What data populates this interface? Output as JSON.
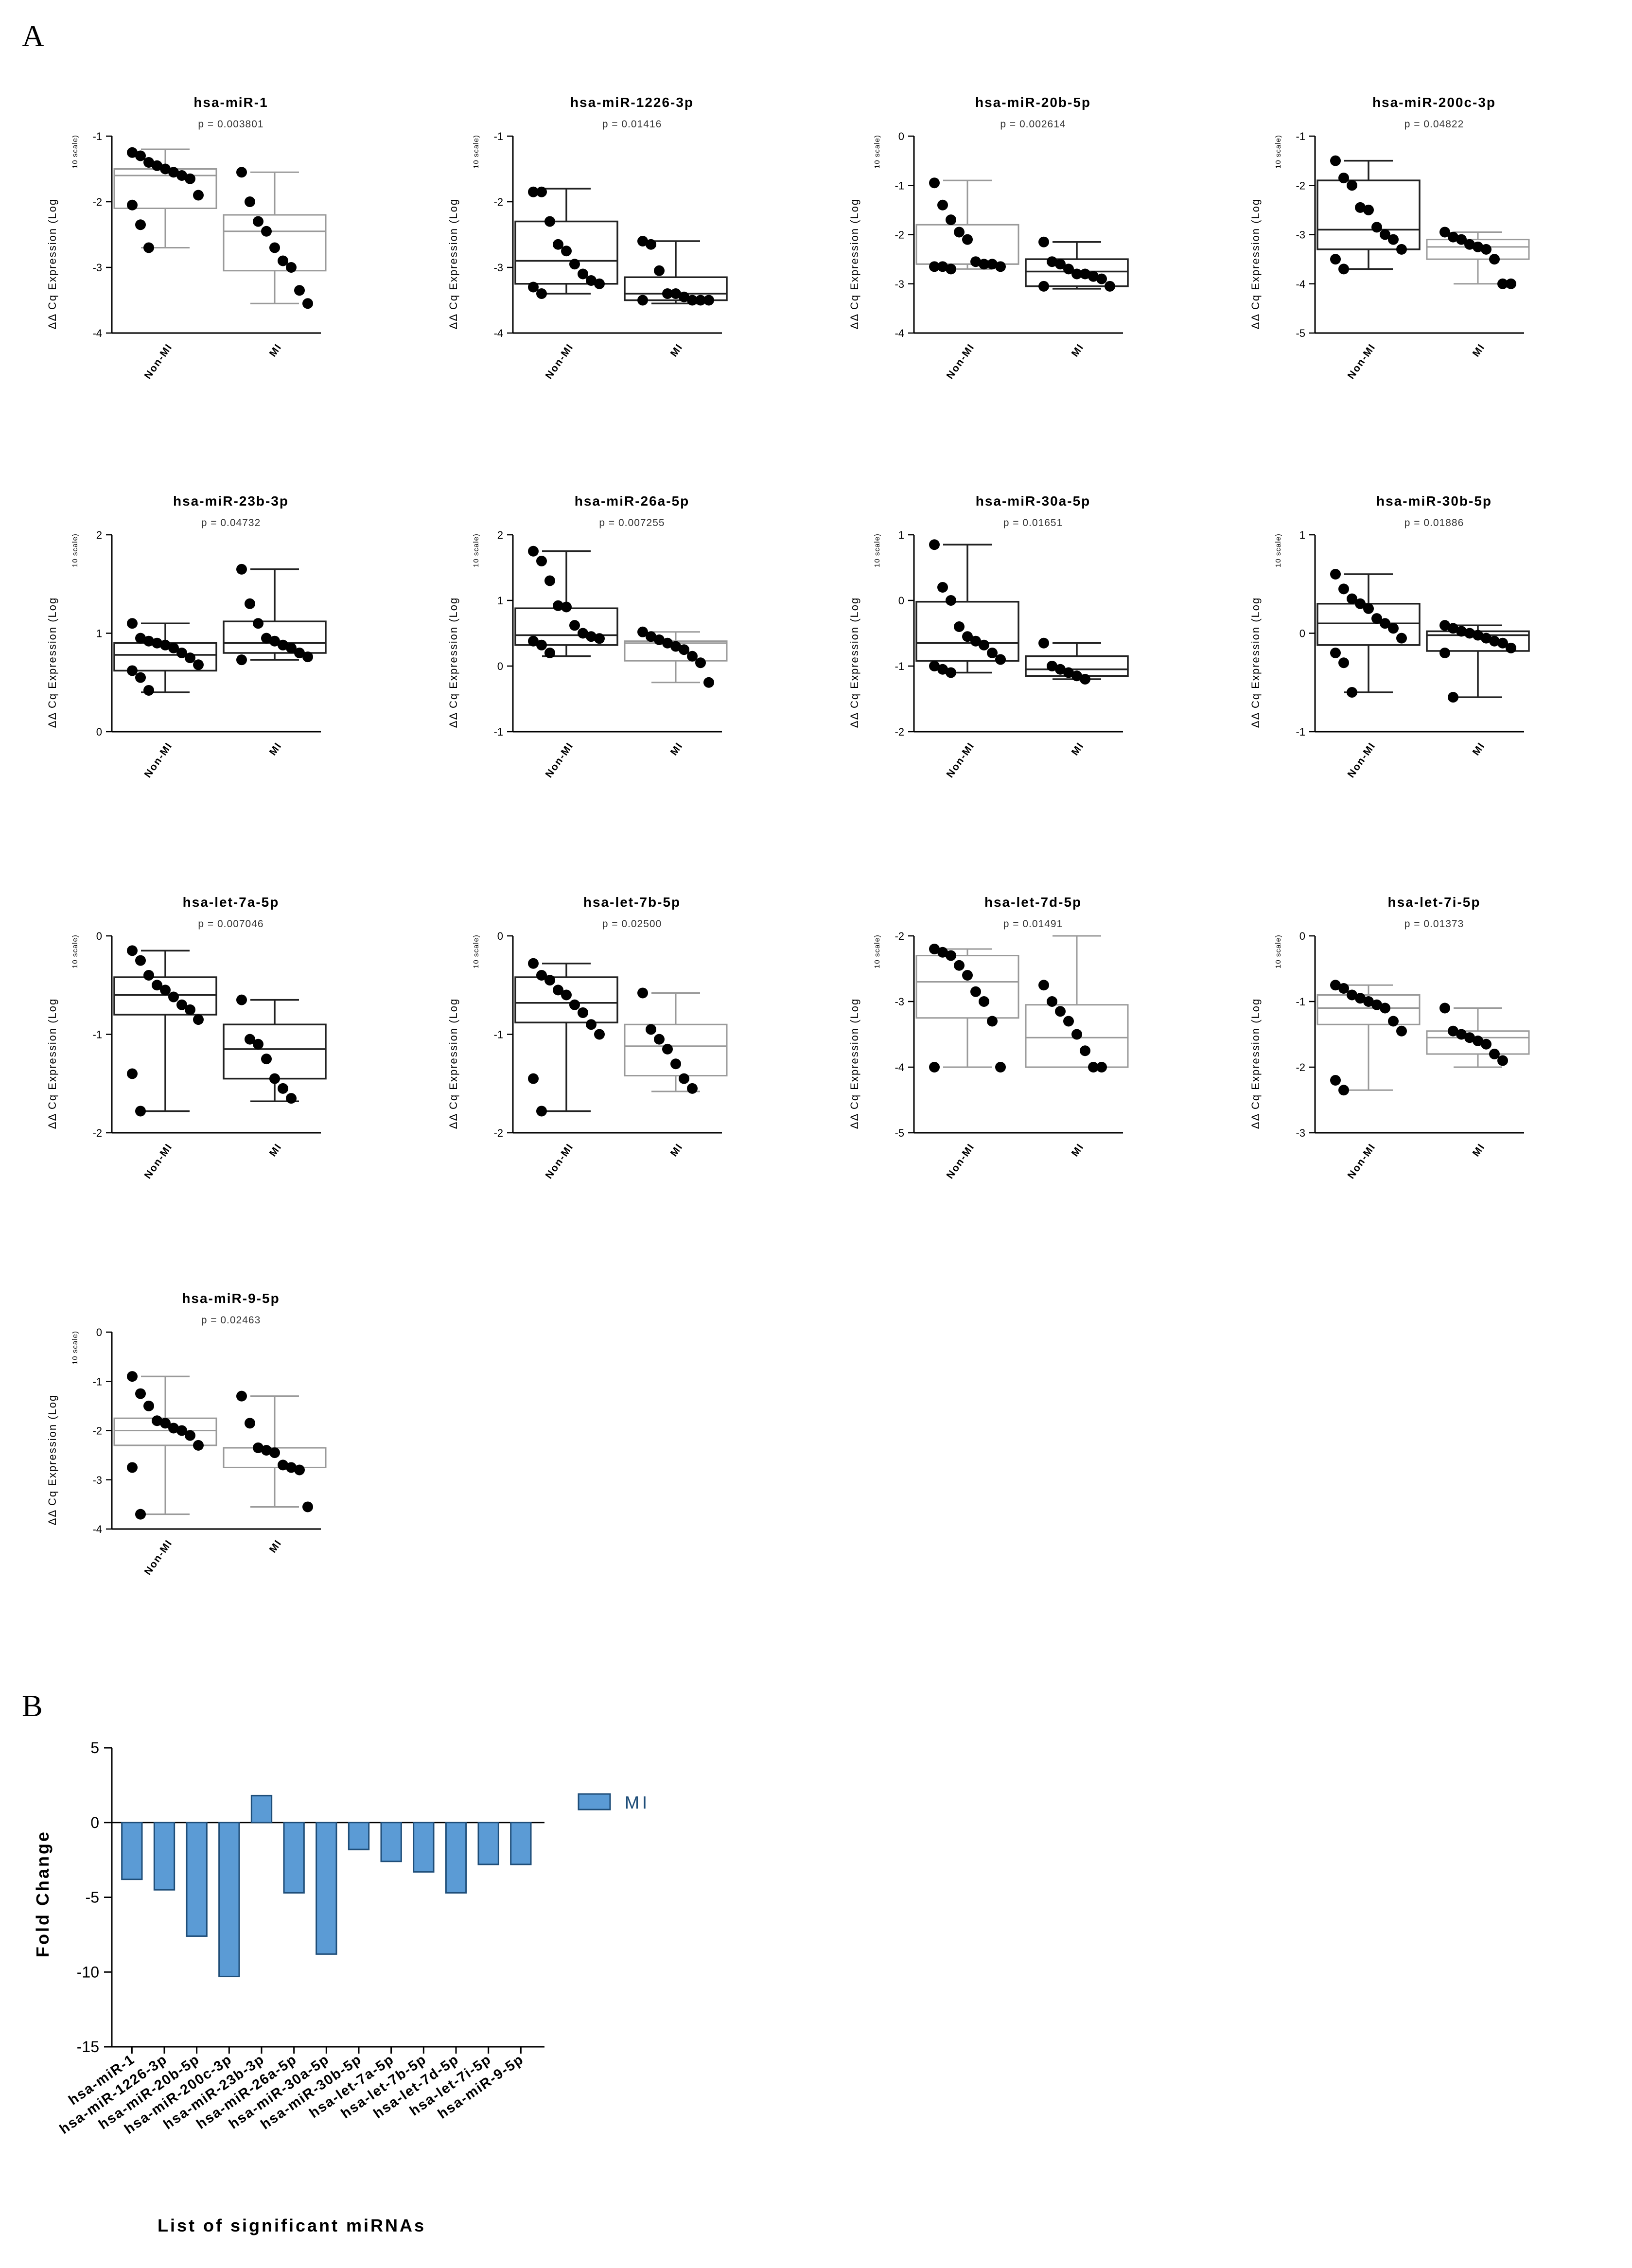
{
  "panel_a": {
    "label": "A"
  },
  "panel_b": {
    "label": "B"
  },
  "colors": {
    "bar_fill": "#5b9bd5",
    "bar_stroke": "#1f4e79",
    "legend_text": "#1f4e79"
  },
  "chart_data": [
    {
      "type": "box",
      "title": "hsa-miR-1",
      "pvalue": "p = 0.003801",
      "ylabel": "ΔΔ Cq Expression (Log",
      "ylabel_sub": "10 scale)",
      "ylim": [
        -4,
        -1
      ],
      "yticks": [
        -1,
        -2,
        -3,
        -4
      ],
      "categories": [
        "Non-MI",
        "MI"
      ],
      "groups": [
        {
          "name": "Non-MI",
          "style": "light",
          "whisker_low": -2.7,
          "q1": -2.1,
          "median": -1.6,
          "q3": -1.5,
          "whisker_high": -1.2,
          "points": [
            -1.25,
            -1.3,
            -1.4,
            -1.45,
            -1.5,
            -1.55,
            -1.6,
            -1.65,
            -1.9,
            -2.05,
            -2.35,
            -2.7
          ]
        },
        {
          "name": "MI",
          "style": "light",
          "whisker_low": -3.55,
          "q1": -3.05,
          "median": -2.45,
          "q3": -2.2,
          "whisker_high": -1.55,
          "points": [
            -1.55,
            -2.0,
            -2.3,
            -2.45,
            -2.7,
            -2.9,
            -3.0,
            -3.35,
            -3.55
          ]
        }
      ]
    },
    {
      "type": "box",
      "title": "hsa-miR-1226-3p",
      "pvalue": "p = 0.01416",
      "ylabel": "ΔΔ Cq Expression (Log",
      "ylabel_sub": "10 scale)",
      "ylim": [
        -4,
        -1
      ],
      "yticks": [
        -1,
        -2,
        -3,
        -4
      ],
      "categories": [
        "Non-MI",
        "MI"
      ],
      "groups": [
        {
          "name": "Non-MI",
          "style": "dark",
          "whisker_low": -3.4,
          "q1": -3.25,
          "median": -2.9,
          "q3": -2.3,
          "whisker_high": -1.8,
          "points": [
            -1.85,
            -1.85,
            -2.3,
            -2.65,
            -2.75,
            -2.95,
            -3.1,
            -3.2,
            -3.25,
            -3.3,
            -3.4
          ]
        },
        {
          "name": "MI",
          "style": "dark",
          "whisker_low": -3.55,
          "q1": -3.5,
          "median": -3.4,
          "q3": -3.15,
          "whisker_high": -2.6,
          "points": [
            -2.6,
            -2.65,
            -3.05,
            -3.4,
            -3.4,
            -3.45,
            -3.5,
            -3.5,
            -3.5,
            -3.5
          ]
        }
      ]
    },
    {
      "type": "box",
      "title": "hsa-miR-20b-5p",
      "pvalue": "p = 0.002614",
      "ylabel": "ΔΔ Cq Expression (Log",
      "ylabel_sub": "10 scale)",
      "ylim": [
        -4,
        0
      ],
      "yticks": [
        0,
        -1,
        -2,
        -3,
        -4
      ],
      "categories": [
        "Non-MI",
        "MI"
      ],
      "groups": [
        {
          "name": "Non-MI",
          "style": "light",
          "whisker_low": -2.7,
          "q1": -2.6,
          "median": -2.6,
          "q3": -1.8,
          "whisker_high": -0.9,
          "points": [
            -0.95,
            -1.4,
            -1.7,
            -1.95,
            -2.1,
            -2.55,
            -2.6,
            -2.6,
            -2.65,
            -2.65,
            -2.65,
            -2.7
          ]
        },
        {
          "name": "MI",
          "style": "dark",
          "whisker_low": -3.1,
          "q1": -3.05,
          "median": -2.75,
          "q3": -2.5,
          "whisker_high": -2.15,
          "points": [
            -2.15,
            -2.55,
            -2.6,
            -2.7,
            -2.8,
            -2.8,
            -2.85,
            -2.9,
            -3.05,
            -3.05
          ]
        }
      ]
    },
    {
      "type": "box",
      "title": "hsa-miR-200c-3p",
      "pvalue": "p = 0.04822",
      "ylabel": "ΔΔ Cq Expression (Log",
      "ylabel_sub": "10 scale)",
      "ylim": [
        -5,
        -1
      ],
      "yticks": [
        -1,
        -2,
        -3,
        -4,
        -5
      ],
      "categories": [
        "Non-MI",
        "MI"
      ],
      "groups": [
        {
          "name": "Non-MI",
          "style": "dark",
          "whisker_low": -3.7,
          "q1": -3.3,
          "median": -2.9,
          "q3": -1.9,
          "whisker_high": -1.5,
          "points": [
            -1.5,
            -1.85,
            -2.0,
            -2.45,
            -2.5,
            -2.85,
            -3.0,
            -3.1,
            -3.3,
            -3.5,
            -3.7
          ]
        },
        {
          "name": "MI",
          "style": "light",
          "whisker_low": -4.0,
          "q1": -3.5,
          "median": -3.25,
          "q3": -3.1,
          "whisker_high": -2.95,
          "points": [
            -2.95,
            -3.05,
            -3.1,
            -3.2,
            -3.25,
            -3.3,
            -3.5,
            -4.0,
            -4.0
          ]
        }
      ]
    },
    {
      "type": "box",
      "title": "hsa-miR-23b-3p",
      "pvalue": "p = 0.04732",
      "ylabel": "ΔΔ Cq Expression (Log",
      "ylabel_sub": "10 scale)",
      "ylim": [
        0,
        2
      ],
      "yticks": [
        2,
        1,
        0
      ],
      "categories": [
        "Non-MI",
        "MI"
      ],
      "groups": [
        {
          "name": "Non-MI",
          "style": "dark",
          "whisker_low": 0.4,
          "q1": 0.62,
          "median": 0.78,
          "q3": 0.9,
          "whisker_high": 1.1,
          "points": [
            1.1,
            0.95,
            0.92,
            0.9,
            0.88,
            0.85,
            0.8,
            0.75,
            0.68,
            0.62,
            0.55,
            0.42
          ]
        },
        {
          "name": "MI",
          "style": "dark",
          "whisker_low": 0.73,
          "q1": 0.8,
          "median": 0.9,
          "q3": 1.12,
          "whisker_high": 1.65,
          "points": [
            1.65,
            1.3,
            1.1,
            0.95,
            0.92,
            0.88,
            0.85,
            0.8,
            0.76,
            0.73
          ]
        }
      ]
    },
    {
      "type": "box",
      "title": "hsa-miR-26a-5p",
      "pvalue": "p = 0.007255",
      "ylabel": "ΔΔ Cq Expression (Log",
      "ylabel_sub": "10 scale)",
      "ylim": [
        -1,
        2
      ],
      "yticks": [
        2,
        1,
        0,
        -1
      ],
      "categories": [
        "Non-MI",
        "MI"
      ],
      "groups": [
        {
          "name": "Non-MI",
          "style": "dark",
          "whisker_low": 0.15,
          "q1": 0.32,
          "median": 0.47,
          "q3": 0.88,
          "whisker_high": 1.75,
          "points": [
            1.75,
            1.6,
            1.3,
            0.92,
            0.9,
            0.62,
            0.5,
            0.45,
            0.42,
            0.38,
            0.32,
            0.2
          ]
        },
        {
          "name": "MI",
          "style": "light",
          "whisker_low": -0.25,
          "q1": 0.08,
          "median": 0.35,
          "q3": 0.38,
          "whisker_high": 0.52,
          "points": [
            0.52,
            0.45,
            0.4,
            0.35,
            0.3,
            0.25,
            0.15,
            0.05,
            -0.25
          ]
        }
      ]
    },
    {
      "type": "box",
      "title": "hsa-miR-30a-5p",
      "pvalue": "p = 0.01651",
      "ylabel": "ΔΔ Cq Expression (Log",
      "ylabel_sub": "10 scale)",
      "ylim": [
        -2,
        1
      ],
      "yticks": [
        1,
        0,
        -1,
        -2
      ],
      "categories": [
        "Non-MI",
        "MI"
      ],
      "groups": [
        {
          "name": "Non-MI",
          "style": "dark",
          "whisker_low": -1.1,
          "q1": -0.92,
          "median": -0.65,
          "q3": -0.02,
          "whisker_high": 0.85,
          "points": [
            0.85,
            0.2,
            0.0,
            -0.4,
            -0.55,
            -0.62,
            -0.68,
            -0.8,
            -0.9,
            -1.0,
            -1.05,
            -1.1
          ]
        },
        {
          "name": "MI",
          "style": "dark",
          "whisker_low": -1.2,
          "q1": -1.15,
          "median": -1.05,
          "q3": -0.85,
          "whisker_high": -0.65,
          "points": [
            -0.65,
            -1.0,
            -1.05,
            -1.1,
            -1.15,
            -1.2
          ]
        }
      ]
    },
    {
      "type": "box",
      "title": "hsa-miR-30b-5p",
      "pvalue": "p = 0.01886",
      "ylabel": "ΔΔ Cq Expression (Log",
      "ylabel_sub": "10 scale)",
      "ylim": [
        -1,
        1
      ],
      "yticks": [
        1,
        0,
        -1
      ],
      "categories": [
        "Non-MI",
        "MI"
      ],
      "groups": [
        {
          "name": "Non-MI",
          "style": "dark",
          "whisker_low": -0.6,
          "q1": -0.12,
          "median": 0.1,
          "q3": 0.3,
          "whisker_high": 0.6,
          "points": [
            0.6,
            0.45,
            0.35,
            0.3,
            0.25,
            0.15,
            0.1,
            0.05,
            -0.05,
            -0.2,
            -0.3,
            -0.6
          ]
        },
        {
          "name": "MI",
          "style": "dark",
          "whisker_low": -0.65,
          "q1": -0.18,
          "median": -0.02,
          "q3": 0.02,
          "whisker_high": 0.08,
          "points": [
            0.08,
            0.05,
            0.02,
            0.0,
            -0.02,
            -0.05,
            -0.08,
            -0.1,
            -0.15,
            -0.2,
            -0.65
          ]
        }
      ]
    },
    {
      "type": "box",
      "title": "hsa-let-7a-5p",
      "pvalue": "p = 0.007046",
      "ylabel": "ΔΔ Cq Expression (Log",
      "ylabel_sub": "10 scale)",
      "ylim": [
        -2,
        0
      ],
      "yticks": [
        0,
        -1,
        -2
      ],
      "categories": [
        "Non-MI",
        "MI"
      ],
      "groups": [
        {
          "name": "Non-MI",
          "style": "dark",
          "whisker_low": -1.78,
          "q1": -0.8,
          "median": -0.6,
          "q3": -0.42,
          "whisker_high": -0.15,
          "points": [
            -0.15,
            -0.25,
            -0.4,
            -0.5,
            -0.55,
            -0.62,
            -0.7,
            -0.75,
            -0.85,
            -1.4,
            -1.78
          ]
        },
        {
          "name": "MI",
          "style": "dark",
          "whisker_low": -1.68,
          "q1": -1.45,
          "median": -1.15,
          "q3": -0.9,
          "whisker_high": -0.65,
          "points": [
            -0.65,
            -1.05,
            -1.1,
            -1.25,
            -1.45,
            -1.55,
            -1.65
          ]
        }
      ]
    },
    {
      "type": "box",
      "title": "hsa-let-7b-5p",
      "pvalue": "p = 0.02500",
      "ylabel": "ΔΔ Cq Expression (Log",
      "ylabel_sub": "10 scale)",
      "ylim": [
        -2,
        0
      ],
      "yticks": [
        0,
        -1,
        -2
      ],
      "categories": [
        "Non-MI",
        "MI"
      ],
      "groups": [
        {
          "name": "Non-MI",
          "style": "dark",
          "whisker_low": -1.78,
          "q1": -0.88,
          "median": -0.68,
          "q3": -0.42,
          "whisker_high": -0.28,
          "points": [
            -0.28,
            -0.4,
            -0.45,
            -0.55,
            -0.6,
            -0.7,
            -0.78,
            -0.9,
            -1.0,
            -1.45,
            -1.78
          ]
        },
        {
          "name": "MI",
          "style": "light",
          "whisker_low": -1.58,
          "q1": -1.42,
          "median": -1.12,
          "q3": -0.9,
          "whisker_high": -0.58,
          "points": [
            -0.58,
            -0.95,
            -1.05,
            -1.15,
            -1.3,
            -1.45,
            -1.55
          ]
        }
      ]
    },
    {
      "type": "box",
      "title": "hsa-let-7d-5p",
      "pvalue": "p = 0.01491",
      "ylabel": "ΔΔ Cq Expression (Log",
      "ylabel_sub": "10 scale)",
      "ylim": [
        -5,
        -2
      ],
      "yticks": [
        -2,
        -3,
        -4,
        -5
      ],
      "categories": [
        "Non-MI",
        "MI"
      ],
      "groups": [
        {
          "name": "Non-MI",
          "style": "light",
          "whisker_low": -4.0,
          "q1": -3.25,
          "median": -2.7,
          "q3": -2.3,
          "whisker_high": -2.2,
          "points": [
            -2.2,
            -2.25,
            -2.3,
            -2.45,
            -2.6,
            -2.85,
            -3.0,
            -3.3,
            -4.0,
            -4.0
          ]
        },
        {
          "name": "MI",
          "style": "light",
          "whisker_low": -4.0,
          "q1": -4.0,
          "median": -3.55,
          "q3": -3.05,
          "whisker_high": -2.0,
          "points": [
            -2.75,
            -3.0,
            -3.15,
            -3.3,
            -3.5,
            -3.75,
            -4.0,
            -4.0
          ]
        }
      ]
    },
    {
      "type": "box",
      "title": "hsa-let-7i-5p",
      "pvalue": "p = 0.01373",
      "ylabel": "ΔΔ Cq Expression (Log",
      "ylabel_sub": "10 scale)",
      "ylim": [
        -3,
        0
      ],
      "yticks": [
        0,
        -1,
        -2,
        -3
      ],
      "categories": [
        "Non-MI",
        "MI"
      ],
      "groups": [
        {
          "name": "Non-MI",
          "style": "light",
          "whisker_low": -2.35,
          "q1": -1.35,
          "median": -1.1,
          "q3": -0.9,
          "whisker_high": -0.75,
          "points": [
            -0.75,
            -0.8,
            -0.9,
            -0.95,
            -1.0,
            -1.05,
            -1.1,
            -1.3,
            -1.45,
            -2.2,
            -2.35
          ]
        },
        {
          "name": "MI",
          "style": "light",
          "whisker_low": -2.0,
          "q1": -1.8,
          "median": -1.55,
          "q3": -1.45,
          "whisker_high": -1.1,
          "points": [
            -1.1,
            -1.45,
            -1.5,
            -1.55,
            -1.6,
            -1.65,
            -1.8,
            -1.9
          ]
        }
      ]
    },
    {
      "type": "box",
      "title": "hsa-miR-9-5p",
      "pvalue": "p = 0.02463",
      "ylabel": "ΔΔ Cq Expression (Log",
      "ylabel_sub": "10 scale)",
      "ylim": [
        -4,
        0
      ],
      "yticks": [
        0,
        -1,
        -2,
        -3,
        -4
      ],
      "categories": [
        "Non-MI",
        "MI"
      ],
      "groups": [
        {
          "name": "Non-MI",
          "style": "light",
          "whisker_low": -3.7,
          "q1": -2.3,
          "median": -2.0,
          "q3": -1.75,
          "whisker_high": -0.9,
          "points": [
            -0.9,
            -1.25,
            -1.5,
            -1.8,
            -1.85,
            -1.95,
            -2.0,
            -2.1,
            -2.3,
            -2.75,
            -3.7
          ]
        },
        {
          "name": "MI",
          "style": "light",
          "whisker_low": -3.55,
          "q1": -2.75,
          "median": -2.35,
          "q3": -2.35,
          "whisker_high": -1.3,
          "points": [
            -1.3,
            -1.85,
            -2.35,
            -2.4,
            -2.45,
            -2.7,
            -2.75,
            -2.8,
            -3.55
          ]
        }
      ]
    },
    {
      "type": "bar",
      "title": "",
      "xlabel": "List of significant miRNAs",
      "ylabel": "Fold Change",
      "ylim": [
        -15,
        5
      ],
      "yticks": [
        5,
        0,
        -5,
        -10,
        -15
      ],
      "legend": "MI",
      "categories": [
        "hsa-miR-1",
        "hsa-miR-1226-3p",
        "hsa-miR-20b-5p",
        "hsa-miR-200c-3p",
        "hsa-miR-23b-3p",
        "hsa-miR-26a-5p",
        "hsa-miR-30a-5p",
        "hsa-miR-30b-5p",
        "hsa-let-7a-5p",
        "hsa-let-7b-5p",
        "hsa-let-7d-5p",
        "hsa-let-7i-5p",
        "hsa-miR-9-5p"
      ],
      "series": [
        {
          "name": "MI",
          "values": [
            -3.8,
            -4.5,
            -7.6,
            -10.3,
            1.8,
            -4.7,
            -8.8,
            -1.8,
            -2.6,
            -3.3,
            -4.7,
            -2.8,
            -2.8
          ]
        }
      ]
    }
  ]
}
